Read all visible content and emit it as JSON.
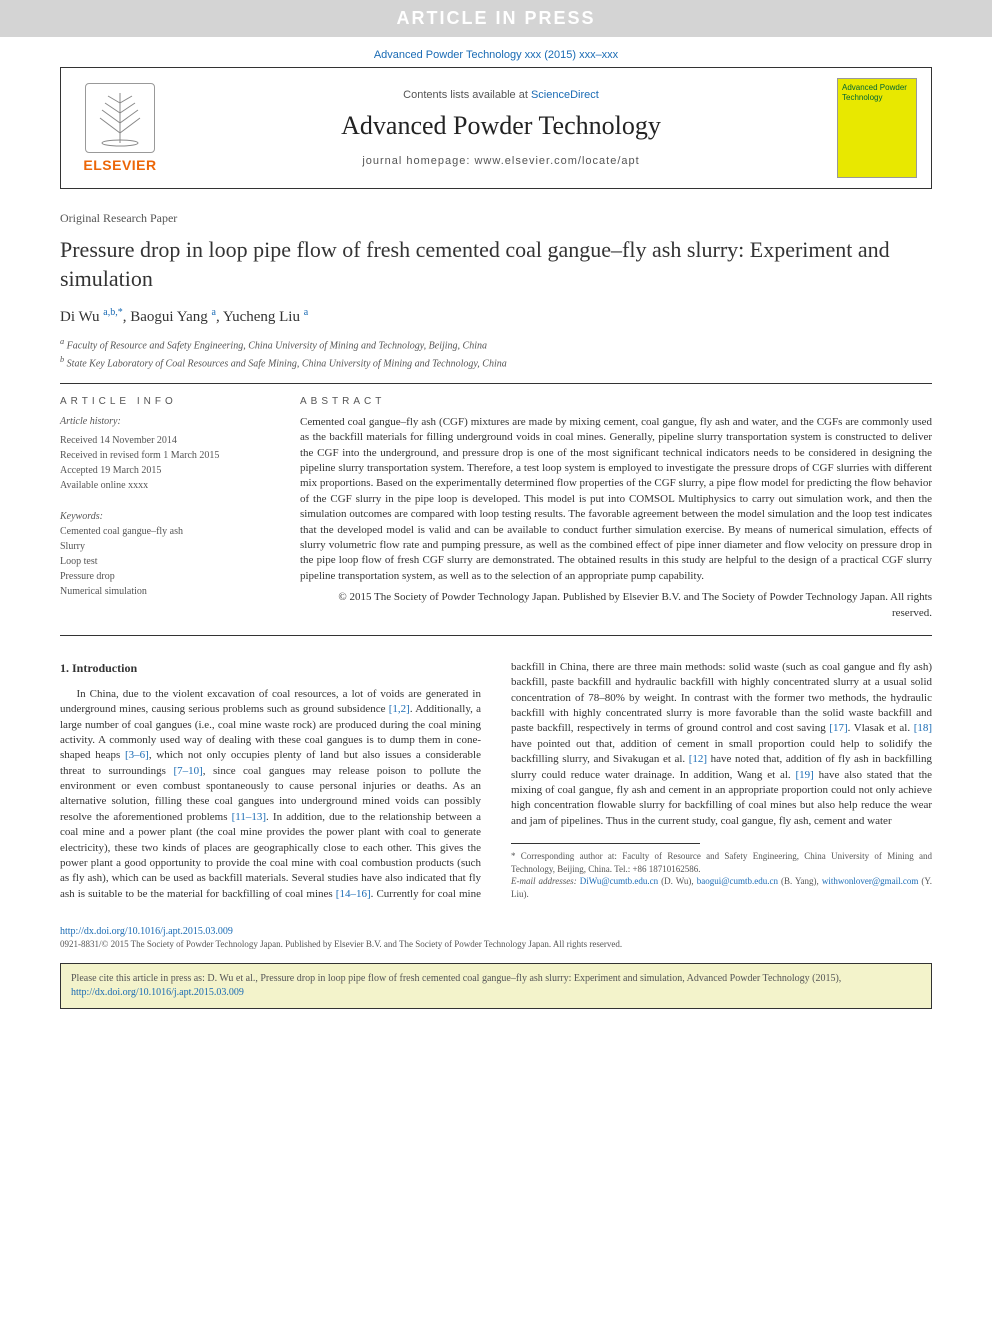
{
  "banner": {
    "article_in_press": "ARTICLE IN PRESS",
    "journal_ref": "Advanced Powder Technology xxx (2015) xxx–xxx"
  },
  "header": {
    "contents_prefix": "Contents lists available at ",
    "contents_link": "ScienceDirect",
    "journal_title": "Advanced Powder Technology",
    "homepage": "journal homepage: www.elsevier.com/locate/apt",
    "elsevier": "ELSEVIER",
    "cover_text": "Advanced Powder Technology"
  },
  "article": {
    "type": "Original Research Paper",
    "title": "Pressure drop in loop pipe flow of fresh cemented coal gangue–fly ash slurry: Experiment and simulation",
    "authors_html": "Di Wu <sup>a,b,*</sup>, Baogui Yang <sup>a</sup>, Yucheng Liu <sup>a</sup>",
    "affiliations": {
      "a": "Faculty of Resource and Safety Engineering, China University of Mining and Technology, Beijing, China",
      "b": "State Key Laboratory of Coal Resources and Safe Mining, China University of Mining and Technology, China"
    }
  },
  "info": {
    "head": "ARTICLE INFO",
    "history_label": "Article history:",
    "history": {
      "received": "Received 14 November 2014",
      "revised": "Received in revised form 1 March 2015",
      "accepted": "Accepted 19 March 2015",
      "online": "Available online xxxx"
    },
    "keywords_label": "Keywords:",
    "keywords": [
      "Cemented coal gangue–fly ash",
      "Slurry",
      "Loop test",
      "Pressure drop",
      "Numerical simulation"
    ]
  },
  "abstract": {
    "head": "ABSTRACT",
    "text": "Cemented coal gangue–fly ash (CGF) mixtures are made by mixing cement, coal gangue, fly ash and water, and the CGFs are commonly used as the backfill materials for filling underground voids in coal mines. Generally, pipeline slurry transportation system is constructed to deliver the CGF into the underground, and pressure drop is one of the most significant technical indicators needs to be considered in designing the pipeline slurry transportation system. Therefore, a test loop system is employed to investigate the pressure drops of CGF slurries with different mix proportions. Based on the experimentally determined flow properties of the CGF slurry, a pipe flow model for predicting the flow behavior of the CGF slurry in the pipe loop is developed. This model is put into COMSOL Multiphysics to carry out simulation work, and then the simulation outcomes are compared with loop testing results. The favorable agreement between the model simulation and the loop test indicates that the developed model is valid and can be available to conduct further simulation exercise. By means of numerical simulation, effects of slurry volumetric flow rate and pumping pressure, as well as the combined effect of pipe inner diameter and flow velocity on pressure drop in the pipe loop flow of fresh CGF slurry are demonstrated. The obtained results in this study are helpful to the design of a practical CGF slurry pipeline transportation system, as well as to the selection of an appropriate pump capability.",
    "copyright": "© 2015 The Society of Powder Technology Japan. Published by Elsevier B.V. and The Society of Powder Technology Japan. All rights reserved."
  },
  "intro": {
    "heading": "1. Introduction",
    "para": "In China, due to the violent excavation of coal resources, a lot of voids are generated in underground mines, causing serious problems such as ground subsidence [1,2]. Additionally, a large number of coal gangues (i.e., coal mine waste rock) are produced during the coal mining activity. A commonly used way of dealing with these coal gangues is to dump them in cone-shaped heaps [3–6], which not only occupies plenty of land but also issues a considerable threat to surroundings [7–10], since coal gangues may release poison to pollute the environment or even combust spontaneously to cause personal injuries or deaths. As an alternative solution, filling these coal gangues into underground mined voids can possibly resolve the aforementioned problems [11–13]. In addition, due to the relationship between a coal mine and a power plant (the coal mine provides the power plant with coal to generate electricity), these two kinds of places are geographically close to each other. This gives the power plant a good opportunity to provide the coal mine with coal combustion products (such as fly ash), which can be used as backfill materials. Several studies have also indicated that fly ash is suitable to be the material for backfilling of coal mines [14–16]. Currently for coal mine backfill in China, there are three main methods: solid waste (such as coal gangue and fly ash) backfill, paste backfill and hydraulic backfill with highly concentrated slurry at a usual solid concentration of 78–80% by weight. In contrast with the former two methods, the hydraulic backfill with highly concentrated slurry is more favorable than the solid waste backfill and paste backfill, respectively in terms of ground control and cost saving [17]. Vlasak et al. [18] have pointed out that, addition of cement in small proportion could help to solidify the backfilling slurry, and Sivakugan et al. [12] have noted that, addition of fly ash in backfilling slurry could reduce water drainage. In addition, Wang et al. [19] have also stated that the mixing of coal gangue, fly ash and cement in an appropriate proportion could not only achieve high concentration flowable slurry for backfilling of coal mines but also help reduce the wear and jam of pipelines. Thus in the current study, coal gangue, fly ash, cement and water",
    "cites": [
      "[1,2]",
      "[3–6]",
      "[7–10]",
      "[11–13]",
      "[14–16]",
      "[17]",
      "[18]",
      "[12]",
      "[19]"
    ]
  },
  "footnote": {
    "corr": "* Corresponding author at: Faculty of Resource and Safety Engineering, China University of Mining and Technology, Beijing, China. Tel.: +86 18710162586.",
    "emails_label": "E-mail addresses:",
    "emails": "DiWu@cumtb.edu.cn (D. Wu), baogui@cumtb.edu.cn (B. Yang), withwonlover@gmail.com (Y. Liu)."
  },
  "doi": {
    "url": "http://dx.doi.org/10.1016/j.apt.2015.03.009",
    "issn": "0921-8831/© 2015 The Society of Powder Technology Japan. Published by Elsevier B.V. and The Society of Powder Technology Japan. All rights reserved."
  },
  "citebox": {
    "text": "Please cite this article in press as: D. Wu et al., Pressure drop in loop pipe flow of fresh cemented coal gangue–fly ash slurry: Experiment and simulation, Advanced Powder Technology (2015), ",
    "link": "http://dx.doi.org/10.1016/j.apt.2015.03.009"
  },
  "colors": {
    "link": "#1a6bb4",
    "banner_bg": "#d4d4d4",
    "citebox_bg": "#f3f3cb",
    "elsevier_orange": "#ec6608",
    "cover_yellow": "#e8e800"
  }
}
